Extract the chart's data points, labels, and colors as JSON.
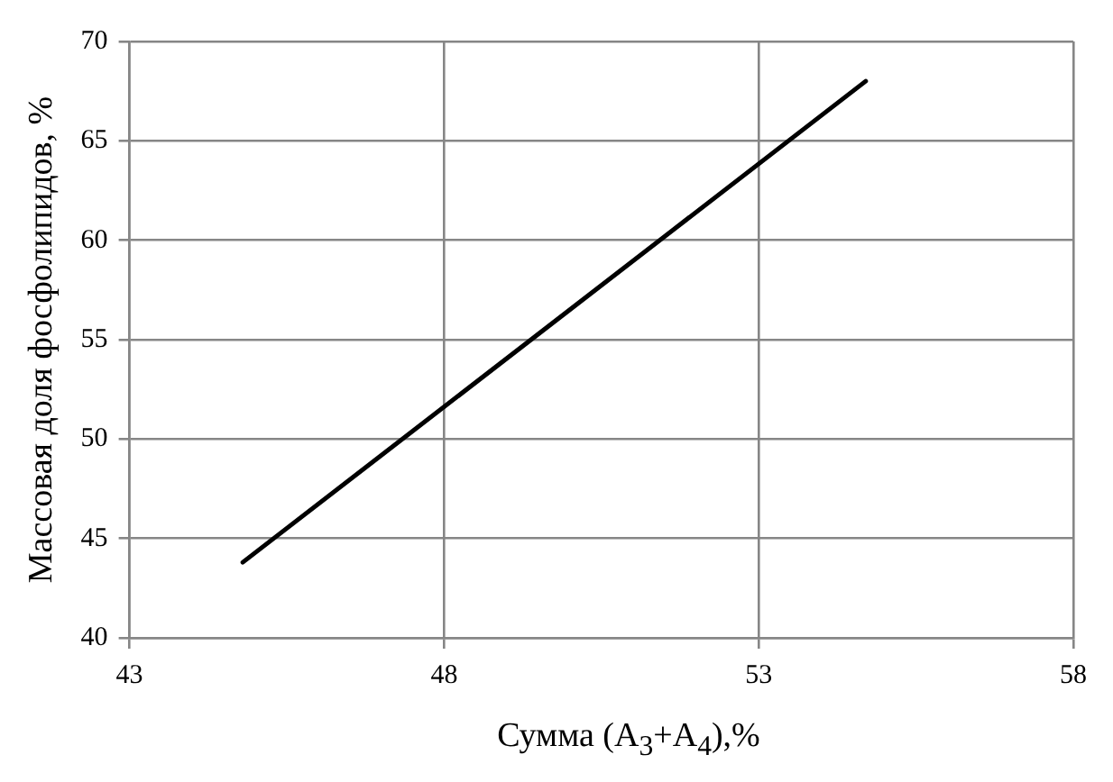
{
  "chart_data": {
    "type": "line",
    "xlabel": "Сумма (A$_{3}$+A$_{4}$),%",
    "ylabel": "Массовая доля фосфолипидов, %",
    "x": [
      44.8,
      54.7
    ],
    "series": [
      {
        "color": "#000000",
        "values": [
          43.8,
          68.0
        ]
      }
    ],
    "xlim": [
      43,
      58
    ],
    "xticks": [
      43,
      48,
      53,
      58
    ],
    "ylim": [
      40,
      70
    ],
    "yticks": [
      40,
      45,
      50,
      55,
      60,
      65,
      70
    ],
    "grid": true,
    "legend": false,
    "marker": "none",
    "line_style": "solid"
  }
}
